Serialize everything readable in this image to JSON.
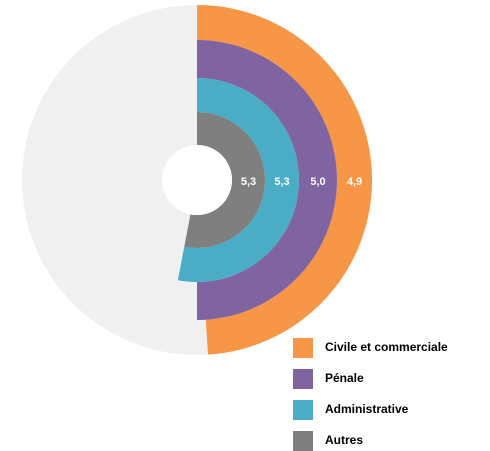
{
  "chart_data": {
    "type": "radial_bar",
    "categories": [
      "Civile et commerciale",
      "Pénale",
      "Administrative",
      "Autres"
    ],
    "values": [
      4.9,
      5.0,
      5.3,
      5.3
    ],
    "value_labels": [
      "4,9",
      "5,0",
      "5,3",
      "5,3"
    ],
    "colors": [
      "#f79646",
      "#8064a2",
      "#4bacc6",
      "#7f7f7f"
    ],
    "ylim": [
      0,
      10
    ]
  }
}
